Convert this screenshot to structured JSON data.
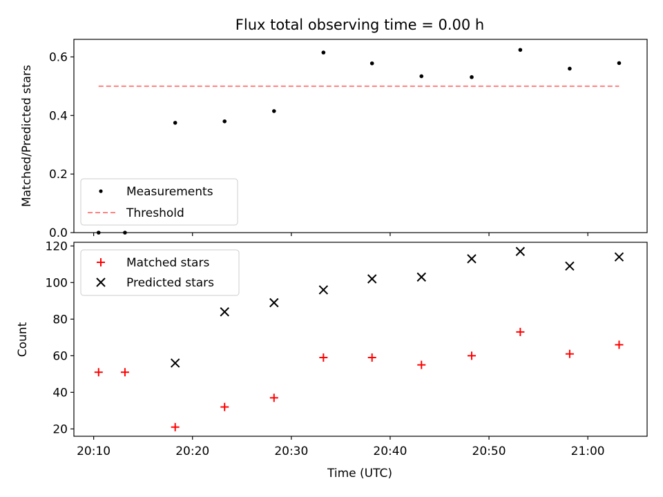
{
  "chart_data": [
    {
      "type": "scatter",
      "title": "Flux total observing time = 0.00 h",
      "xlabel": "",
      "ylabel": "Matched/Predicted stars",
      "xlim": [
        "20:08:00",
        "21:06:00"
      ],
      "ylim": [
        0,
        0.66
      ],
      "yticks": [
        0.0,
        0.2,
        0.4,
        0.6
      ],
      "ytick_labels": [
        "0.0",
        "0.2",
        "0.4",
        "0.6"
      ],
      "legend": "lower-left",
      "series": [
        {
          "name": "Measurements",
          "marker": "dot",
          "color": "#000000",
          "x": [
            "20:10:30",
            "20:13:10",
            "20:18:15",
            "20:23:15",
            "20:28:15",
            "20:33:15",
            "20:38:10",
            "20:43:10",
            "20:48:15",
            "20:53:10",
            "20:58:10",
            "21:03:10"
          ],
          "values": [
            0.0,
            0.0,
            0.375,
            0.38,
            0.415,
            0.615,
            0.578,
            0.534,
            0.531,
            0.624,
            0.56,
            0.579
          ]
        },
        {
          "name": "Threshold",
          "style": "dashed-line",
          "color": "#ff7f7f",
          "x": [
            "20:10:30",
            "21:03:10"
          ],
          "values": [
            0.5,
            0.5
          ]
        }
      ]
    },
    {
      "type": "scatter",
      "xlabel": "Time (UTC)",
      "ylabel": "Count",
      "xlim": [
        "20:08:00",
        "21:06:00"
      ],
      "ylim": [
        16,
        122
      ],
      "yticks": [
        20,
        40,
        60,
        80,
        100,
        120
      ],
      "ytick_labels": [
        "20",
        "40",
        "60",
        "80",
        "100",
        "120"
      ],
      "xticks": [
        "20:10",
        "20:20",
        "20:30",
        "20:40",
        "20:50",
        "21:00"
      ],
      "legend": "upper-left",
      "series": [
        {
          "name": "Matched stars",
          "marker": "plus",
          "color": "#ff0000",
          "x": [
            "20:10:30",
            "20:13:10",
            "20:18:15",
            "20:23:15",
            "20:28:15",
            "20:33:15",
            "20:38:10",
            "20:43:10",
            "20:48:15",
            "20:53:10",
            "20:58:10",
            "21:03:10"
          ],
          "values": [
            51,
            51,
            21,
            32,
            37,
            59,
            59,
            55,
            60,
            73,
            61,
            66
          ]
        },
        {
          "name": "Predicted stars",
          "marker": "x",
          "color": "#000000",
          "x": [
            "20:18:15",
            "20:23:15",
            "20:28:15",
            "20:33:15",
            "20:38:10",
            "20:43:10",
            "20:48:15",
            "20:53:10",
            "20:58:10",
            "21:03:10"
          ],
          "values": [
            56,
            84,
            89,
            96,
            102,
            103,
            113,
            117,
            109,
            114
          ]
        }
      ]
    }
  ]
}
